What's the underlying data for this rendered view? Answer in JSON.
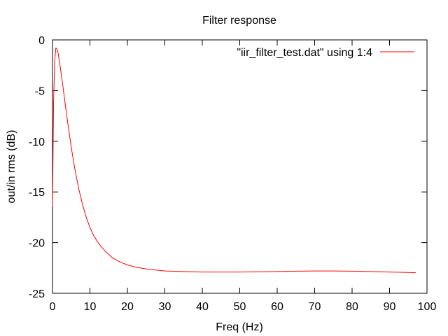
{
  "chart_data": {
    "type": "line",
    "title": "Filter response",
    "xlabel": "Freq (Hz)",
    "ylabel": "out/in rms (dB)",
    "xlim": [
      0,
      100
    ],
    "ylim": [
      -25,
      0
    ],
    "x_ticks": [
      0,
      10,
      20,
      30,
      40,
      50,
      60,
      70,
      80,
      90,
      100
    ],
    "y_ticks": [
      0,
      -5,
      -10,
      -15,
      -20,
      -25
    ],
    "grid": false,
    "legend_position": "top-right",
    "series": [
      {
        "name": "\"iir_filter_test.dat\" using 1:4",
        "color": "#ff0000",
        "x": [
          0,
          0.3,
          0.6,
          0.9,
          1.2,
          1.5,
          2,
          2.5,
          3,
          3.5,
          4,
          5,
          6,
          7,
          8,
          9,
          10,
          11,
          12,
          13,
          14,
          16,
          18,
          20,
          22,
          25,
          30,
          35,
          40,
          45,
          50,
          55,
          60,
          65,
          70,
          75,
          80,
          85,
          90,
          95,
          97
        ],
        "y": [
          -16.4,
          -6.0,
          -2.0,
          -0.8,
          -0.9,
          -1.3,
          -2.5,
          -3.8,
          -5.2,
          -6.6,
          -8.0,
          -10.6,
          -12.8,
          -14.7,
          -16.2,
          -17.5,
          -18.5,
          -19.3,
          -19.9,
          -20.4,
          -20.8,
          -21.5,
          -21.9,
          -22.2,
          -22.4,
          -22.6,
          -22.8,
          -22.85,
          -22.9,
          -22.9,
          -22.9,
          -22.88,
          -22.85,
          -22.82,
          -22.8,
          -22.8,
          -22.82,
          -22.85,
          -22.9,
          -22.95,
          -22.97
        ]
      }
    ]
  }
}
